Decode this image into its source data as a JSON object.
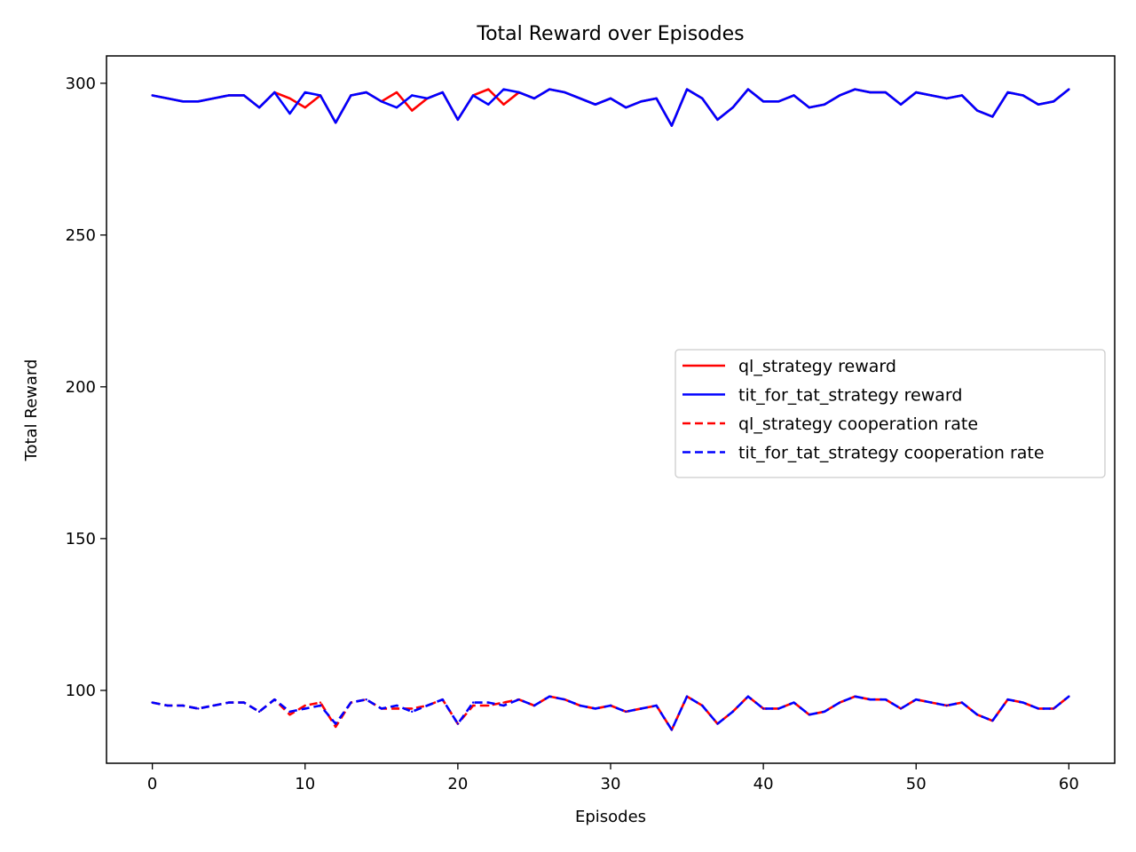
{
  "chart_data": {
    "type": "line",
    "title": "Total Reward over Episodes",
    "xlabel": "Episodes",
    "ylabel": "Total Reward",
    "xlim": [
      -3,
      63
    ],
    "ylim": [
      76,
      309
    ],
    "xticks": [
      0,
      10,
      20,
      30,
      40,
      50,
      60
    ],
    "yticks": [
      100,
      150,
      200,
      250,
      300
    ],
    "grid": false,
    "legend_position": "center-right",
    "x": [
      0,
      1,
      2,
      3,
      4,
      5,
      6,
      7,
      8,
      9,
      10,
      11,
      12,
      13,
      14,
      15,
      16,
      17,
      18,
      19,
      20,
      21,
      22,
      23,
      24,
      25,
      26,
      27,
      28,
      29,
      30,
      31,
      32,
      33,
      34,
      35,
      36,
      37,
      38,
      39,
      40,
      41,
      42,
      43,
      44,
      45,
      46,
      47,
      48,
      49,
      50,
      51,
      52,
      53,
      54,
      55,
      56,
      57,
      58,
      59,
      60
    ],
    "series": [
      {
        "name": "ql_strategy reward",
        "color": "#ff0000",
        "dash": "solid",
        "values": [
          296,
          295,
          294,
          294,
          295,
          296,
          296,
          292,
          297,
          295,
          292,
          296,
          287,
          296,
          297,
          294,
          297,
          291,
          295,
          297,
          288,
          296,
          298,
          293,
          297,
          295,
          298,
          297,
          295,
          293,
          295,
          292,
          294,
          295,
          286,
          298,
          295,
          288,
          292,
          298,
          294,
          294,
          296,
          292,
          293,
          296,
          298,
          297,
          297,
          293,
          297,
          296,
          295,
          296,
          291,
          289,
          297,
          296,
          293,
          294,
          298
        ]
      },
      {
        "name": "tit_for_tat_strategy reward",
        "color": "#0000ff",
        "dash": "solid",
        "values": [
          296,
          295,
          294,
          294,
          295,
          296,
          296,
          292,
          297,
          290,
          297,
          296,
          287,
          296,
          297,
          294,
          292,
          296,
          295,
          297,
          288,
          296,
          293,
          298,
          297,
          295,
          298,
          297,
          295,
          293,
          295,
          292,
          294,
          295,
          286,
          298,
          295,
          288,
          292,
          298,
          294,
          294,
          296,
          292,
          293,
          296,
          298,
          297,
          297,
          293,
          297,
          296,
          295,
          296,
          291,
          289,
          297,
          296,
          293,
          294,
          298
        ]
      },
      {
        "name": "ql_strategy cooperation rate",
        "color": "#ff0000",
        "dash": "dashed",
        "values": [
          96,
          95,
          95,
          94,
          95,
          96,
          96,
          93,
          97,
          92,
          95,
          96,
          88,
          96,
          97,
          94,
          94,
          94,
          95,
          97,
          89,
          95,
          95,
          96,
          97,
          95,
          98,
          97,
          95,
          94,
          95,
          93,
          94,
          95,
          87,
          98,
          95,
          89,
          93,
          98,
          94,
          94,
          96,
          92,
          93,
          96,
          98,
          97,
          97,
          94,
          97,
          96,
          95,
          96,
          92,
          90,
          97,
          96,
          94,
          94,
          98
        ]
      },
      {
        "name": "tit_for_tat_strategy cooperation rate",
        "color": "#0000ff",
        "dash": "dashed",
        "values": [
          96,
          95,
          95,
          94,
          95,
          96,
          96,
          93,
          97,
          93,
          94,
          95,
          89,
          96,
          97,
          94,
          95,
          93,
          95,
          97,
          89,
          96,
          96,
          95,
          97,
          95,
          98,
          97,
          95,
          94,
          95,
          93,
          94,
          95,
          87,
          98,
          95,
          89,
          93,
          98,
          94,
          94,
          96,
          92,
          93,
          96,
          98,
          97,
          97,
          94,
          97,
          96,
          95,
          96,
          92,
          90,
          97,
          96,
          94,
          94,
          98
        ]
      }
    ]
  }
}
